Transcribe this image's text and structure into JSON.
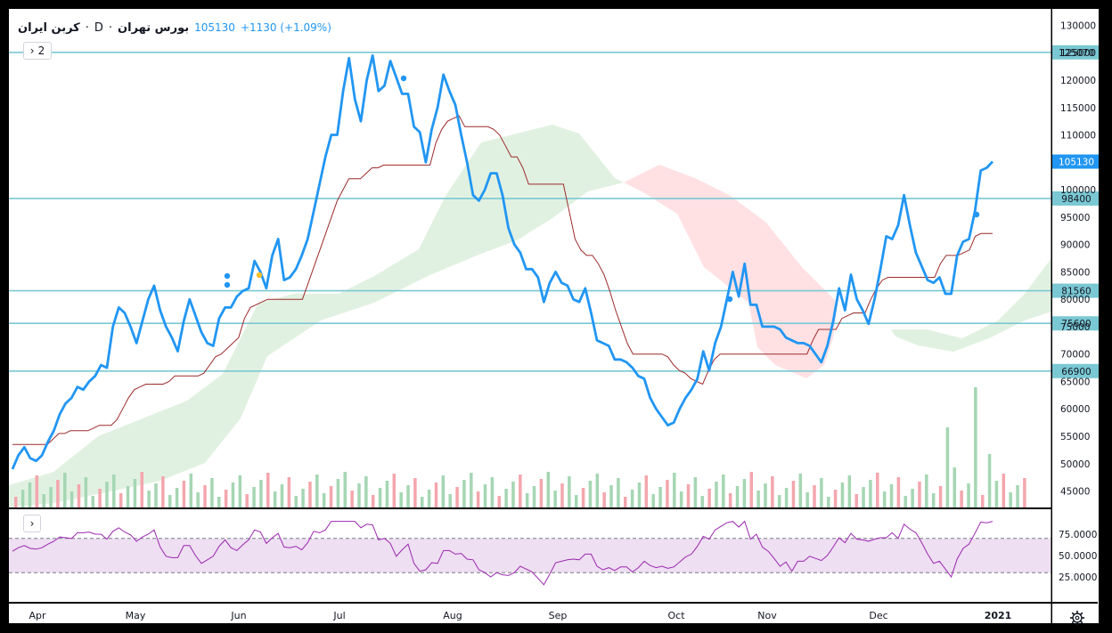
{
  "header": {
    "symbol": "كربن ايران",
    "interval": "D",
    "exchange": "بورس تهران",
    "price": "105130",
    "change": "+1130 (+1.09%)",
    "sep1": "·",
    "sep2": "·"
  },
  "controls": {
    "indicators_toggle": "2",
    "chevron": "›",
    "rsi_toggle": "›"
  },
  "colors": {
    "price_line": "#2196f3",
    "baseline": "#9c2a2a",
    "hline": "#7ac8d3",
    "cloud_green": "#c8e6c9",
    "cloud_red": "#ffcdd2",
    "vol_up": "#a5d6b3",
    "vol_down": "#f4a6ad",
    "rsi_line": "#9c27b0",
    "rsi_band": "#eedff2",
    "marker_yellow": "#f6c02a"
  },
  "chart_data": {
    "type": "line",
    "y_axis_ticks": [
      130000,
      125000,
      120000,
      115000,
      110000,
      105000,
      100000,
      95000,
      90000,
      85000,
      80000,
      75000,
      70000,
      65000,
      60000,
      55000,
      50000,
      45000
    ],
    "x_axis_labels": [
      "Apr",
      "May",
      "Jun",
      "Jul",
      "Aug",
      "Sep",
      "Oct",
      "Nov",
      "Dec",
      "2021"
    ],
    "ylim": [
      42000,
      133000
    ],
    "horizontal_levels": [
      "125070",
      "98400",
      "81560",
      "75600",
      "66900"
    ],
    "last_price_label": "105130",
    "series": [
      {
        "values": [
          49000,
          51500,
          53000,
          51000,
          50500,
          51500,
          54000,
          56000,
          59000,
          61000,
          62000,
          64000,
          63500,
          65000,
          66000,
          68000,
          67500,
          75000,
          78500,
          77500,
          75000,
          72000,
          76000,
          80000,
          82500,
          78000,
          75000,
          73000,
          70500,
          76000,
          80000,
          77000,
          74000,
          72000,
          71500,
          76500,
          78500,
          78500,
          80500,
          81500,
          82000,
          87000,
          85000,
          82000,
          88000,
          91000,
          83500,
          84000,
          85500,
          88000,
          91000,
          96000,
          101000,
          106000,
          110000,
          110000,
          118000,
          124000,
          116500,
          112500,
          120000,
          124500,
          118000,
          119000,
          123500,
          120500,
          117500,
          117500,
          111500,
          110500,
          105000,
          111000,
          115000,
          121000,
          118000,
          115500,
          110000,
          105000,
          99000,
          98000,
          100000,
          103000,
          103000,
          99000,
          93000,
          90000,
          88500,
          85500,
          85500,
          84000,
          79500,
          83000,
          85000,
          83000,
          82500,
          80000,
          79500,
          82000,
          77500,
          72500,
          72000,
          71500,
          69000,
          69000,
          68500,
          67500,
          66000,
          65500,
          62000,
          60000,
          58500,
          57000,
          57500,
          60000,
          62000,
          63500,
          65500,
          70500,
          67000,
          72000,
          75000,
          80000,
          85000,
          80500,
          86500,
          79000,
          79000,
          75000,
          75000,
          75000,
          74500,
          73000,
          72500,
          72000,
          72000,
          71500,
          70000,
          68500,
          71500,
          76000,
          82000,
          78000,
          84500,
          80000,
          78000,
          75500,
          80000,
          85500,
          91500,
          91000,
          93500,
          99000,
          93500,
          88500,
          86000,
          83500,
          83000,
          84000,
          81000,
          81000,
          88000,
          90500,
          91000,
          96000,
          103500,
          104000,
          105130
        ],
        "color": "#2196f3"
      },
      {
        "values": [
          53500,
          53500,
          53500,
          53500,
          53500,
          53500,
          53500,
          54500,
          55500,
          55500,
          56000,
          56000,
          56000,
          56000,
          56500,
          57000,
          57000,
          57000,
          58000,
          60000,
          62000,
          63500,
          64000,
          64500,
          64500,
          64500,
          64500,
          65000,
          66000,
          66000,
          66000,
          66000,
          66000,
          66500,
          68000,
          69500,
          70000,
          71000,
          72000,
          73000,
          76500,
          78500,
          79000,
          79500,
          80000,
          80000,
          80000,
          80000,
          80000,
          80000,
          80000,
          83000,
          86000,
          89000,
          92000,
          95000,
          98000,
          100000,
          102000,
          102000,
          102000,
          103000,
          104000,
          104000,
          104500,
          104500,
          104500,
          104500,
          104500,
          104500,
          104500,
          104500,
          104500,
          108500,
          111000,
          112500,
          113000,
          113500,
          111500,
          111500,
          111500,
          111500,
          111500,
          111000,
          110000,
          108000,
          106000,
          106000,
          104000,
          101000,
          101000,
          101000,
          101000,
          101000,
          101000,
          101000,
          96000,
          91000,
          89000,
          88000,
          88000,
          86500,
          84500,
          81500,
          78000,
          75000,
          72000,
          70000,
          70000,
          70000,
          70000,
          70000,
          70000,
          69500,
          68000,
          67000,
          66500,
          65500,
          65000,
          64500,
          67000,
          69000,
          70000,
          70000,
          70000,
          70000,
          70000,
          70000,
          70000,
          70000,
          70000,
          70000,
          70000,
          70000,
          70000,
          70000,
          70000,
          70000,
          72500,
          74500,
          74500,
          74500,
          74500,
          76500,
          77000,
          77500,
          77500,
          77500,
          80000,
          82000,
          83500,
          84000,
          84000,
          84000,
          84000,
          84000,
          84000,
          84000,
          84000,
          84000,
          86500,
          88000,
          88000,
          88000,
          88500,
          89000,
          91500,
          92000,
          92000,
          92000
        ],
        "color": "#9c2a2a"
      }
    ],
    "rsi": {
      "levels": [
        25,
        50,
        75
      ],
      "overbought": 70,
      "oversold": 30,
      "tick_labels": [
        "75.0000",
        "50.0000",
        "25.0000"
      ]
    }
  }
}
